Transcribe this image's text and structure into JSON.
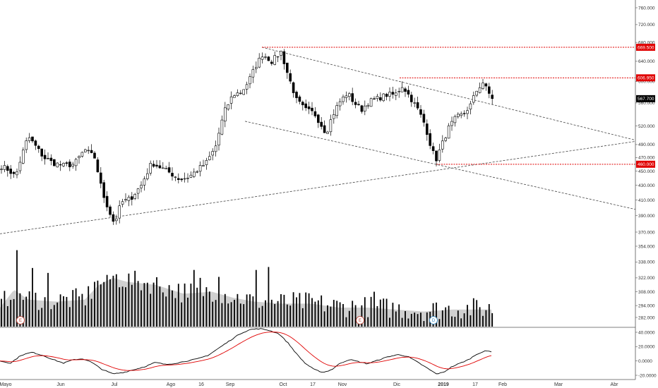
{
  "chart_data": {
    "type": "candlestick",
    "colors": {
      "up_body": "#ffffff",
      "down_body": "#000000",
      "wick": "#000000",
      "level_line": "#e00000",
      "level_tag": "#e00000",
      "last_tag": "#000000",
      "trend_line": "#444444",
      "volume_bar": "#000000",
      "volume_ma": "#d0d0d0",
      "macd_line": "#000000",
      "signal_line": "#e00000",
      "event_earnings": "#c0392b",
      "event_dividend": "#2e86c1"
    },
    "price_axis": {
      "ticks": [
        "760.000",
        "720.000",
        "680.000",
        "640.000",
        "600.000",
        "560.000",
        "520.000",
        "490.000",
        "470.000",
        "450.000",
        "430.000",
        "410.000",
        "390.000",
        "370.000"
      ],
      "log_scale": true
    },
    "volume_axis": {
      "ticks": [
        "354.000",
        "338.000",
        "322.000",
        "308.000",
        "294.000",
        "282.000"
      ]
    },
    "macd_axis": {
      "ticks": [
        "40.0000",
        "20.0000",
        "0.0000",
        "-20.0000"
      ],
      "range": [
        -28,
        46
      ]
    },
    "x_axis": {
      "labels": [
        "Mayo",
        "Jun",
        "Jul",
        "Ago",
        "16",
        "Sep",
        "Oct",
        "17",
        "Nov",
        "Dic",
        "2019",
        "17",
        "Feb",
        "Mar",
        "Abr"
      ],
      "bold_label": "2019"
    },
    "price_levels": [
      {
        "label": "669.500",
        "value": 669.5,
        "kind": "resistance"
      },
      {
        "label": "606.950",
        "value": 606.95,
        "kind": "resistance"
      },
      {
        "label": "460.000",
        "value": 460.0,
        "kind": "support"
      }
    ],
    "last_price": {
      "label": "567.700",
      "value": 567.7
    },
    "trend_lines": [
      {
        "name": "upper-channel",
        "from": {
          "x": 371,
          "price": 669.5
        },
        "to": {
          "x": 900,
          "price": 497
        }
      },
      {
        "name": "lower-channel",
        "from": {
          "x": 347,
          "price": 528
        },
        "to": {
          "x": 900,
          "price": 398
        }
      },
      {
        "name": "long-support",
        "from": {
          "x": 0,
          "price": 368
        },
        "to": {
          "x": 900,
          "price": 495
        }
      }
    ],
    "events": [
      {
        "label": "E",
        "kind": "earnings",
        "bar_x": 29
      },
      {
        "label": "E",
        "kind": "earnings",
        "bar_x": 510
      },
      {
        "label": "D",
        "kind": "dividend",
        "bar_x": 614
      }
    ],
    "price_anchors": [
      [
        0,
        458
      ],
      [
        12,
        452
      ],
      [
        22,
        442
      ],
      [
        30,
        470
      ],
      [
        40,
        503
      ],
      [
        52,
        485
      ],
      [
        62,
        470
      ],
      [
        75,
        462
      ],
      [
        90,
        458
      ],
      [
        105,
        460
      ],
      [
        120,
        482
      ],
      [
        134,
        470
      ],
      [
        145,
        420
      ],
      [
        155,
        395
      ],
      [
        162,
        380
      ],
      [
        172,
        407
      ],
      [
        185,
        412
      ],
      [
        200,
        430
      ],
      [
        215,
        462
      ],
      [
        228,
        455
      ],
      [
        240,
        448
      ],
      [
        255,
        438
      ],
      [
        268,
        442
      ],
      [
        280,
        452
      ],
      [
        292,
        462
      ],
      [
        305,
        485
      ],
      [
        318,
        545
      ],
      [
        330,
        575
      ],
      [
        342,
        580
      ],
      [
        352,
        600
      ],
      [
        362,
        630
      ],
      [
        372,
        655
      ],
      [
        385,
        640
      ],
      [
        398,
        660
      ],
      [
        408,
        612
      ],
      [
        420,
        565
      ],
      [
        432,
        548
      ],
      [
        445,
        542
      ],
      [
        455,
        522
      ],
      [
        462,
        508
      ],
      [
        470,
        535
      ],
      [
        480,
        560
      ],
      [
        492,
        578
      ],
      [
        502,
        560
      ],
      [
        512,
        548
      ],
      [
        522,
        562
      ],
      [
        535,
        568
      ],
      [
        548,
        575
      ],
      [
        560,
        575
      ],
      [
        570,
        592
      ],
      [
        582,
        568
      ],
      [
        592,
        548
      ],
      [
        602,
        522
      ],
      [
        612,
        480
      ],
      [
        618,
        468
      ],
      [
        626,
        490
      ],
      [
        636,
        518
      ],
      [
        646,
        534
      ],
      [
        656,
        540
      ],
      [
        666,
        555
      ],
      [
        676,
        585
      ],
      [
        684,
        598
      ],
      [
        692,
        578
      ],
      [
        698,
        568
      ]
    ],
    "volume_anchors": [
      [
        0,
        292
      ],
      [
        20,
        310
      ],
      [
        40,
        300
      ],
      [
        80,
        298
      ],
      [
        120,
        300
      ],
      [
        140,
        315
      ],
      [
        160,
        322
      ],
      [
        180,
        318
      ],
      [
        220,
        315
      ],
      [
        260,
        306
      ],
      [
        300,
        308
      ],
      [
        330,
        302
      ],
      [
        360,
        298
      ],
      [
        400,
        296
      ],
      [
        440,
        296
      ],
      [
        480,
        292
      ],
      [
        520,
        292
      ],
      [
        560,
        290
      ],
      [
        600,
        288
      ],
      [
        640,
        290
      ],
      [
        698,
        290
      ]
    ],
    "macd_anchors": [
      [
        0,
        0
      ],
      [
        15,
        -3
      ],
      [
        30,
        8
      ],
      [
        45,
        12
      ],
      [
        60,
        8
      ],
      [
        75,
        2
      ],
      [
        90,
        -3
      ],
      [
        105,
        2
      ],
      [
        118,
        3
      ],
      [
        130,
        -2
      ],
      [
        145,
        -12
      ],
      [
        160,
        -18
      ],
      [
        175,
        -16
      ],
      [
        190,
        -12
      ],
      [
        205,
        -8
      ],
      [
        220,
        -2
      ],
      [
        235,
        -5
      ],
      [
        250,
        -3
      ],
      [
        265,
        0
      ],
      [
        280,
        3
      ],
      [
        295,
        8
      ],
      [
        310,
        18
      ],
      [
        325,
        28
      ],
      [
        340,
        38
      ],
      [
        355,
        44
      ],
      [
        368,
        45
      ],
      [
        380,
        43
      ],
      [
        395,
        38
      ],
      [
        408,
        25
      ],
      [
        420,
        10
      ],
      [
        432,
        -3
      ],
      [
        445,
        -12
      ],
      [
        458,
        -16
      ],
      [
        470,
        -12
      ],
      [
        482,
        -3
      ],
      [
        495,
        2
      ],
      [
        508,
        -1
      ],
      [
        520,
        -4
      ],
      [
        535,
        1
      ],
      [
        550,
        6
      ],
      [
        565,
        9
      ],
      [
        578,
        6
      ],
      [
        592,
        -2
      ],
      [
        605,
        -10
      ],
      [
        618,
        -18
      ],
      [
        628,
        -16
      ],
      [
        640,
        -8
      ],
      [
        652,
        -3
      ],
      [
        664,
        2
      ],
      [
        676,
        10
      ],
      [
        688,
        14
      ],
      [
        698,
        13
      ]
    ]
  }
}
